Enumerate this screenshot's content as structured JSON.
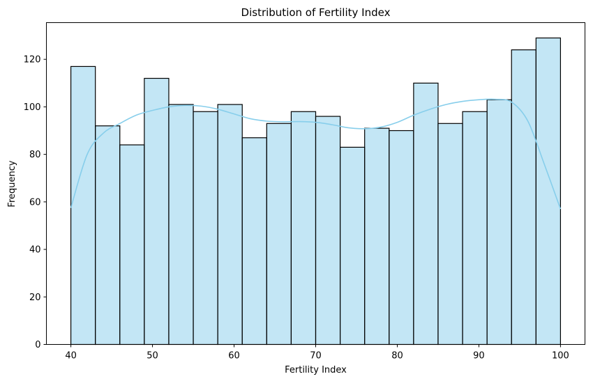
{
  "chart_data": {
    "type": "bar",
    "title": "Distribution of Fertility Index",
    "xlabel": "Fertility Index",
    "ylabel": "Frequency",
    "xlim": [
      37.0,
      103.0
    ],
    "ylim": [
      0,
      135.45
    ],
    "xticks": [
      40,
      50,
      60,
      70,
      80,
      90,
      100
    ],
    "yticks": [
      0,
      20,
      40,
      60,
      80,
      100,
      120
    ],
    "bin_edges": [
      40,
      43,
      46,
      49,
      52,
      55,
      58,
      61,
      64,
      67,
      70,
      73,
      76,
      79,
      82,
      85,
      88,
      91,
      94,
      97,
      100
    ],
    "values": [
      117,
      92,
      84,
      112,
      101,
      98,
      101,
      87,
      93,
      98,
      96,
      83,
      91,
      90,
      110,
      93,
      98,
      103,
      124,
      129
    ],
    "bar_color": "#87CEEB",
    "bar_alpha": 0.5,
    "edge_color": "#000000",
    "kde": {
      "color": "#87CEEB",
      "x": [
        40,
        42,
        44,
        46,
        48,
        50,
        52,
        54,
        56,
        58,
        60,
        62,
        64,
        66,
        68,
        70,
        72,
        74,
        76,
        78,
        80,
        82,
        84,
        86,
        88,
        90,
        92,
        94,
        96,
        98,
        100
      ],
      "y": [
        57.5,
        80,
        89,
        93,
        96.5,
        98.5,
        100,
        100.6,
        100.3,
        99,
        97,
        95,
        94,
        93.7,
        93.8,
        93.5,
        92.5,
        91.2,
        90.8,
        91.5,
        93.5,
        96.5,
        99,
        101,
        102.3,
        103,
        103.2,
        102,
        94,
        76,
        57
      ]
    }
  }
}
